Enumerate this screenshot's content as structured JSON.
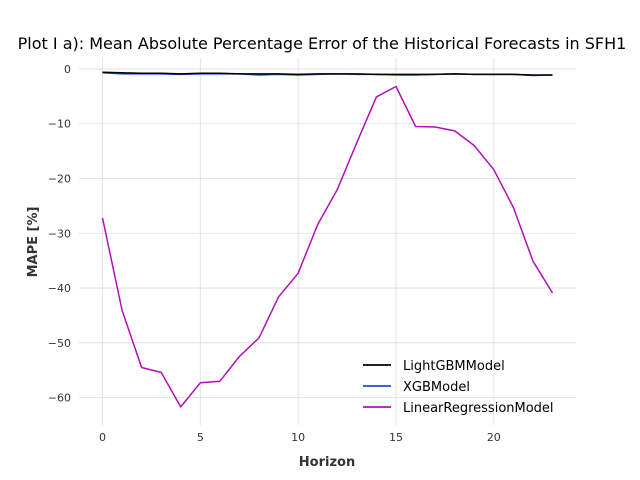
{
  "chart_data": {
    "type": "line",
    "title": "Plot I a): Mean Absolute Percentage Error of the Historical Forecasts in SFH1",
    "xlabel": "Horizon",
    "ylabel": "MAPE [%]",
    "xlim": [
      -1.2,
      24.2
    ],
    "ylim": [
      -65,
      2
    ],
    "xticks": [
      0,
      5,
      10,
      15,
      20
    ],
    "yticks": [
      0,
      -10,
      -20,
      -30,
      -40,
      -50,
      -60
    ],
    "grid": true,
    "legend_position": "lower-right",
    "x": [
      0,
      1,
      2,
      3,
      4,
      5,
      6,
      7,
      8,
      9,
      10,
      11,
      12,
      13,
      14,
      15,
      16,
      17,
      18,
      19,
      20,
      21,
      22,
      23
    ],
    "series": [
      {
        "name": "LightGBMModel",
        "color": "#000000",
        "values": [
          -0.6,
          -0.7,
          -0.8,
          -0.8,
          -0.9,
          -0.8,
          -0.8,
          -0.9,
          -0.9,
          -0.9,
          -1.0,
          -0.9,
          -0.9,
          -0.9,
          -1.0,
          -1.0,
          -1.0,
          -1.0,
          -0.9,
          -1.0,
          -1.0,
          -1.0,
          -1.1,
          -1.1
        ]
      },
      {
        "name": "XGBModel",
        "color": "#1f4fd1",
        "values": [
          -0.7,
          -0.9,
          -0.9,
          -0.9,
          -1.0,
          -0.9,
          -0.9,
          -0.9,
          -1.1,
          -1.0,
          -1.1,
          -1.0,
          -0.9,
          -1.0,
          -1.0,
          -1.1,
          -1.1,
          -1.0,
          -0.9,
          -1.0,
          -1.0,
          -1.0,
          -1.2,
          -1.1
        ]
      },
      {
        "name": "LinearRegressionModel",
        "color": "#b010b8",
        "values": [
          -27.2,
          -44.0,
          -54.5,
          -55.4,
          -61.7,
          -57.3,
          -57.0,
          -52.5,
          -49.1,
          -41.6,
          -37.3,
          -28.4,
          -22.0,
          -13.4,
          -5.1,
          -3.2,
          -10.5,
          -10.6,
          -11.3,
          -14.0,
          -18.4,
          -25.3,
          -35.1,
          -40.9
        ]
      }
    ]
  }
}
